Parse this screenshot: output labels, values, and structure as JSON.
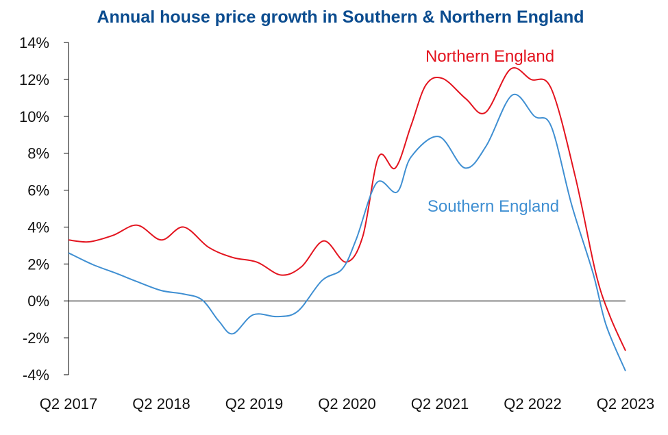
{
  "colors": {
    "title": "#0b4c8f",
    "northern": "#e3141f",
    "southern": "#3f8fd2",
    "axis": "#000000"
  },
  "chart_data": {
    "type": "line",
    "title": "Annual house price growth in Southern & Northern England",
    "xlabel": "",
    "ylabel": "",
    "ylim": [
      -4,
      14
    ],
    "xlim": [
      2017.25,
      2023.25
    ],
    "y_ticks": [
      "-4%",
      "-2%",
      "0%",
      "2%",
      "4%",
      "6%",
      "8%",
      "10%",
      "12%",
      "14%"
    ],
    "y_tick_values": [
      -4,
      -2,
      0,
      2,
      4,
      6,
      8,
      10,
      12,
      14
    ],
    "x_ticks": [
      "Q2 2017",
      "Q2 2018",
      "Q2 2019",
      "Q2 2020",
      "Q2 2021",
      "Q2 2022",
      "Q2 2023"
    ],
    "x_tick_values": [
      2017.25,
      2018.25,
      2019.25,
      2020.25,
      2021.25,
      2022.25,
      2023.25
    ],
    "grid": false,
    "legend": "inline labels",
    "series": [
      {
        "name": "Northern England",
        "x": [
          2017.25,
          2017.47,
          2017.73,
          2017.99,
          2018.25,
          2018.49,
          2018.76,
          2019.02,
          2019.28,
          2019.54,
          2019.76,
          2020.0,
          2020.24,
          2020.42,
          2020.59,
          2020.77,
          2020.94,
          2021.1,
          2021.28,
          2021.53,
          2021.74,
          2022.01,
          2022.23,
          2022.45,
          2022.71,
          2022.93,
          2023.08,
          2023.25
        ],
        "values": [
          3.3,
          3.2,
          3.55,
          4.1,
          3.3,
          4.0,
          2.9,
          2.35,
          2.1,
          1.4,
          1.85,
          3.25,
          2.1,
          3.5,
          7.8,
          7.2,
          9.5,
          11.7,
          12.05,
          10.95,
          10.2,
          12.55,
          12.0,
          11.5,
          6.7,
          1.5,
          -0.8,
          -2.7
        ]
      },
      {
        "name": "Southern England",
        "x": [
          2017.25,
          2017.51,
          2017.77,
          2017.99,
          2018.25,
          2018.49,
          2018.69,
          2018.87,
          2019.02,
          2019.24,
          2019.5,
          2019.72,
          2019.98,
          2020.2,
          2020.35,
          2020.57,
          2020.79,
          2020.94,
          2021.24,
          2021.52,
          2021.75,
          2022.03,
          2022.27,
          2022.45,
          2022.67,
          2022.9,
          2023.04,
          2023.25
        ],
        "values": [
          2.6,
          1.97,
          1.48,
          1.04,
          0.56,
          0.37,
          0.05,
          -1.1,
          -1.78,
          -0.75,
          -0.85,
          -0.56,
          1.1,
          1.74,
          3.35,
          6.4,
          5.9,
          7.8,
          8.9,
          7.2,
          8.4,
          11.15,
          10.0,
          9.45,
          5.2,
          1.5,
          -1.3,
          -3.8
        ]
      }
    ],
    "annotations": [
      "Northern England",
      "Southern England"
    ]
  }
}
